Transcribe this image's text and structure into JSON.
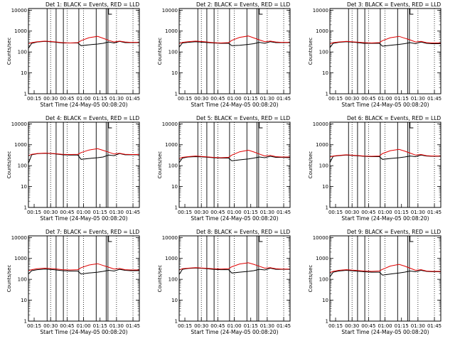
{
  "chart_data": {
    "type": "line",
    "yscale": "log",
    "ylim": [
      1,
      12000
    ],
    "xlim": [
      7,
      108
    ],
    "x_unit": "minutes after 00:00 on 24-May-05",
    "yticks": [
      "1",
      "10",
      "100",
      "1000",
      "10000"
    ],
    "xticks": [
      "00:15",
      "00:30",
      "00:45",
      "01:00",
      "01:15",
      "01:30",
      "01:45"
    ],
    "ylabel": "Counts/sec",
    "xlabel": "Start Time (24-May-05 00:08:20)",
    "events_color": "#000000",
    "lld_color": "#e00000",
    "panels": [
      {
        "title": "Det 1: BLACK = Events, RED = LLD",
        "x": [
          7,
          10,
          15,
          22,
          30,
          38,
          45,
          52,
          55,
          62,
          70,
          75,
          80,
          85,
          90,
          95,
          100,
          108
        ],
        "events": [
          150,
          260,
          300,
          320,
          300,
          270,
          270,
          270,
          200,
          220,
          240,
          260,
          300,
          270,
          320,
          280,
          280,
          280
        ],
        "lld": [
          250,
          280,
          310,
          330,
          310,
          280,
          270,
          280,
          350,
          480,
          560,
          450,
          360,
          300,
          330,
          300,
          290,
          290
        ]
      },
      {
        "title": "Det 2: BLACK = Events, RED = LLD",
        "x": [
          7,
          10,
          15,
          22,
          30,
          38,
          45,
          52,
          55,
          62,
          70,
          75,
          80,
          85,
          90,
          95,
          100,
          108
        ],
        "events": [
          170,
          270,
          290,
          310,
          290,
          270,
          260,
          260,
          200,
          210,
          230,
          250,
          290,
          260,
          310,
          280,
          280,
          280
        ],
        "lld": [
          250,
          290,
          310,
          330,
          310,
          280,
          270,
          280,
          360,
          500,
          580,
          470,
          380,
          310,
          330,
          300,
          290,
          290
        ]
      },
      {
        "title": "Det 3: BLACK = Events, RED = LLD",
        "x": [
          7,
          10,
          15,
          22,
          30,
          38,
          45,
          52,
          55,
          62,
          70,
          75,
          80,
          85,
          90,
          95,
          100,
          108
        ],
        "events": [
          160,
          260,
          290,
          310,
          290,
          260,
          260,
          260,
          190,
          210,
          230,
          250,
          280,
          250,
          300,
          260,
          250,
          250
        ],
        "lld": [
          240,
          280,
          300,
          320,
          300,
          280,
          270,
          280,
          350,
          480,
          560,
          460,
          380,
          300,
          320,
          280,
          270,
          270
        ]
      },
      {
        "title": "Det 4: BLACK = Events, RED = LLD",
        "x": [
          7,
          10,
          15,
          22,
          30,
          38,
          45,
          52,
          55,
          62,
          70,
          75,
          80,
          85,
          90,
          95,
          100,
          108
        ],
        "events": [
          130,
          330,
          370,
          390,
          370,
          330,
          320,
          320,
          200,
          220,
          240,
          260,
          320,
          300,
          380,
          330,
          330,
          330
        ],
        "lld": [
          300,
          350,
          380,
          400,
          380,
          350,
          340,
          350,
          420,
          560,
          650,
          540,
          440,
          360,
          390,
          350,
          340,
          340
        ]
      },
      {
        "title": "Det 5: BLACK = Events, RED = LLD",
        "x": [
          7,
          10,
          15,
          22,
          30,
          38,
          45,
          52,
          55,
          62,
          70,
          75,
          80,
          85,
          90,
          95,
          100,
          108
        ],
        "events": [
          140,
          230,
          260,
          270,
          260,
          240,
          230,
          230,
          170,
          190,
          210,
          230,
          260,
          240,
          280,
          250,
          250,
          240
        ],
        "lld": [
          220,
          250,
          270,
          290,
          270,
          250,
          240,
          250,
          320,
          460,
          550,
          450,
          360,
          290,
          310,
          270,
          260,
          260
        ]
      },
      {
        "title": "Det 6: BLACK = Events, RED = LLD",
        "x": [
          7,
          10,
          15,
          22,
          30,
          38,
          45,
          52,
          55,
          62,
          70,
          75,
          80,
          85,
          90,
          95,
          100,
          108
        ],
        "events": [
          140,
          280,
          300,
          320,
          300,
          280,
          270,
          270,
          200,
          220,
          240,
          260,
          290,
          270,
          320,
          290,
          280,
          280
        ],
        "lld": [
          260,
          290,
          310,
          330,
          310,
          290,
          280,
          290,
          380,
          520,
          600,
          500,
          400,
          320,
          340,
          300,
          290,
          290
        ]
      },
      {
        "title": "Det 7: BLACK = Events, RED = LLD",
        "x": [
          7,
          10,
          15,
          22,
          30,
          38,
          45,
          52,
          55,
          62,
          70,
          75,
          80,
          85,
          90,
          95,
          100,
          108
        ],
        "events": [
          180,
          260,
          290,
          310,
          290,
          260,
          250,
          250,
          180,
          200,
          220,
          240,
          270,
          250,
          300,
          270,
          260,
          260
        ],
        "lld": [
          260,
          290,
          320,
          340,
          320,
          290,
          280,
          290,
          360,
          480,
          560,
          460,
          380,
          310,
          330,
          290,
          280,
          280
        ]
      },
      {
        "title": "Det 8: BLACK = Events, RED = LLD",
        "x": [
          7,
          10,
          15,
          22,
          30,
          38,
          45,
          52,
          55,
          62,
          70,
          75,
          80,
          85,
          90,
          95,
          100,
          108
        ],
        "events": [
          170,
          300,
          330,
          350,
          330,
          300,
          290,
          290,
          200,
          220,
          240,
          260,
          300,
          280,
          340,
          300,
          300,
          300
        ],
        "lld": [
          280,
          320,
          340,
          360,
          340,
          320,
          310,
          320,
          400,
          540,
          620,
          520,
          420,
          340,
          360,
          320,
          310,
          310
        ]
      },
      {
        "title": "Det 9: BLACK = Events, RED = LLD",
        "x": [
          7,
          10,
          15,
          22,
          30,
          38,
          45,
          52,
          55,
          62,
          70,
          75,
          80,
          85,
          90,
          95,
          100,
          108
        ],
        "events": [
          130,
          220,
          250,
          270,
          250,
          230,
          220,
          220,
          160,
          180,
          200,
          220,
          250,
          230,
          270,
          240,
          230,
          230
        ],
        "lld": [
          210,
          240,
          270,
          290,
          270,
          250,
          240,
          250,
          300,
          430,
          520,
          430,
          340,
          270,
          290,
          250,
          240,
          240
        ]
      }
    ]
  }
}
